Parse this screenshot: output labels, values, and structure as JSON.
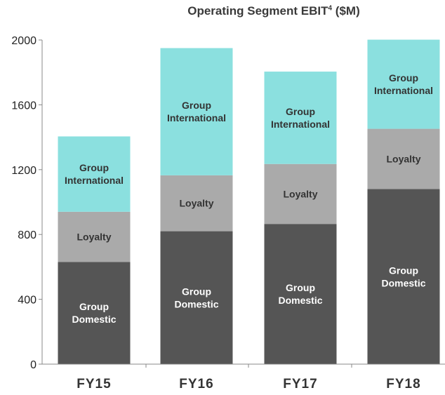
{
  "chart_data": {
    "type": "bar",
    "stacked": true,
    "title": "Operating Segment EBIT",
    "title_superscript": "4",
    "title_unit": "($M)",
    "categories": [
      "FY15",
      "FY16",
      "FY17",
      "FY18"
    ],
    "series": [
      {
        "name": "Group Domestic",
        "values": [
          630,
          820,
          865,
          1080
        ],
        "color": "#555555",
        "label_color": "#ffffff"
      },
      {
        "name": "Loyalty",
        "values": [
          310,
          345,
          370,
          372
        ],
        "color": "#aaaaaa",
        "label_color": "#333333"
      },
      {
        "name": "Group International",
        "values": [
          465,
          785,
          570,
          550
        ],
        "color": "#8be0df",
        "label_color": "#333333"
      }
    ],
    "ylim": [
      0,
      2000
    ],
    "yticks": [
      0,
      400,
      800,
      1200,
      1600,
      2000
    ],
    "grid": false
  }
}
